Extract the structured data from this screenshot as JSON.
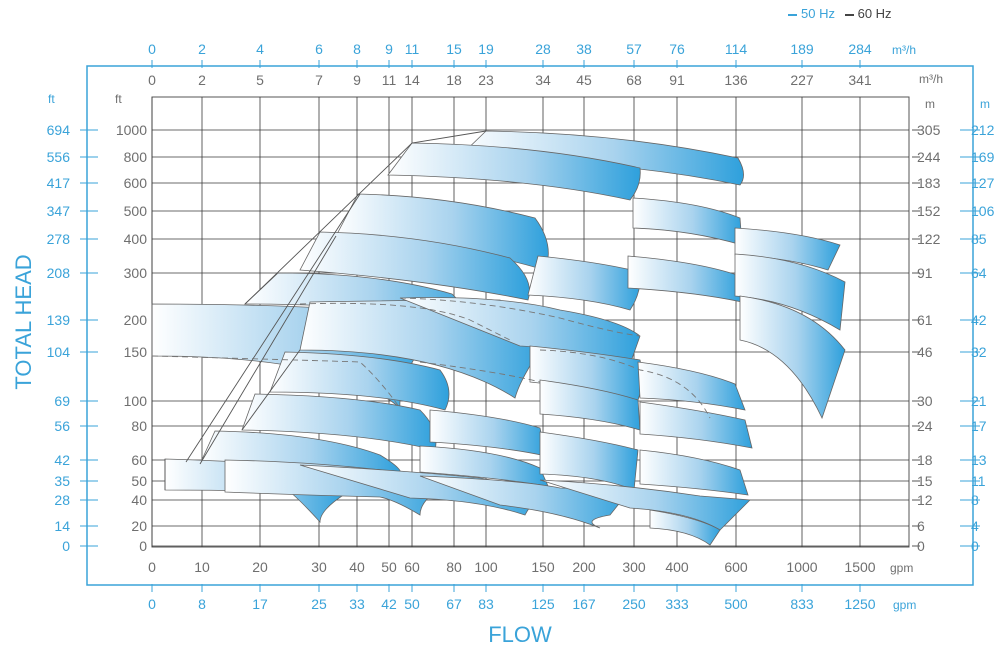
{
  "legend": {
    "hz50": "50 Hz",
    "hz60": "60 Hz"
  },
  "colors": {
    "blue": "#3aa3d9",
    "gray": "#6f6f6f",
    "grid": "#3a3a3a",
    "frame": "#3aa3d9"
  },
  "axes": {
    "y_title": "TOTAL HEAD",
    "x_title": "FLOW",
    "left_outer_unit": "ft",
    "left_outer_ticks": [
      "694",
      "556",
      "417",
      "347",
      "278",
      "208",
      "139",
      "104",
      "69",
      "56",
      "42",
      "35",
      "28",
      "14",
      "0"
    ],
    "left_inner_unit": "ft",
    "left_inner_ticks": [
      "1000",
      "800",
      "600",
      "500",
      "400",
      "300",
      "200",
      "150",
      "100",
      "80",
      "60",
      "50",
      "40",
      "20",
      "0"
    ],
    "right_inner_unit": "m",
    "right_inner_ticks": [
      "305",
      "244",
      "183",
      "152",
      "122",
      "91",
      "61",
      "46",
      "30",
      "24",
      "18",
      "15",
      "12",
      "6",
      "0"
    ],
    "right_outer_unit": "m",
    "right_outer_ticks": [
      "212",
      "169",
      "127",
      "106",
      "85",
      "64",
      "42",
      "32",
      "21",
      "17",
      "13",
      "11",
      "8",
      "4",
      "0"
    ],
    "top_outer_unit": "m³/h",
    "top_outer_ticks": [
      "0",
      "2",
      "4",
      "6",
      "8",
      "9",
      "11",
      "15",
      "19",
      "28",
      "38",
      "57",
      "76",
      "114",
      "189",
      "284"
    ],
    "top_inner_unit": "m³/h",
    "top_inner_ticks": [
      "0",
      "2",
      "5",
      "7",
      "9",
      "11",
      "14",
      "18",
      "23",
      "34",
      "45",
      "68",
      "91",
      "136",
      "227",
      "341"
    ],
    "bottom_inner_unit": "gpm",
    "bottom_inner_ticks": [
      "0",
      "10",
      "20",
      "30",
      "40",
      "50",
      "60",
      "80",
      "100",
      "150",
      "200",
      "300",
      "400",
      "600",
      "1000",
      "1500"
    ],
    "bottom_outer_unit": "gpm",
    "bottom_outer_ticks": [
      "0",
      "8",
      "17",
      "25",
      "33",
      "42",
      "50",
      "67",
      "83",
      "125",
      "167",
      "250",
      "333",
      "500",
      "833",
      "1250"
    ]
  },
  "chart_data": {
    "type": "area",
    "x_scale": "log (offset)",
    "y_scale": "log (offset)",
    "grid": true,
    "legend_position": "top-right",
    "x_gpm_ticks": [
      0,
      10,
      20,
      30,
      40,
      50,
      60,
      80,
      100,
      150,
      200,
      300,
      400,
      600,
      1000,
      1500
    ],
    "y_ft_ticks": [
      0,
      20,
      40,
      50,
      60,
      80,
      100,
      150,
      200,
      300,
      400,
      500,
      600,
      800,
      1000
    ],
    "pump_curve_bands_approx": [
      {
        "flow_gpm": [
          2,
          29
        ],
        "head_ft": [
          65,
          45
        ]
      },
      {
        "flow_gpm": [
          12,
          55
        ],
        "head_ft": [
          62,
          40
        ]
      },
      {
        "flow_gpm": [
          40,
          125
        ],
        "head_ft": [
          80,
          50
        ]
      },
      {
        "flow_gpm": [
          70,
          250
        ],
        "head_ft": [
          80,
          48
        ]
      },
      {
        "flow_gpm": [
          150,
          550
        ],
        "head_ft": [
          80,
          50
        ]
      },
      {
        "flow_gpm": [
          200,
          550
        ],
        "head_ft": [
          115,
          70
        ]
      },
      {
        "flow_gpm": [
          350,
          1300
        ],
        "head_ft": [
          450,
          160
        ]
      }
    ]
  }
}
